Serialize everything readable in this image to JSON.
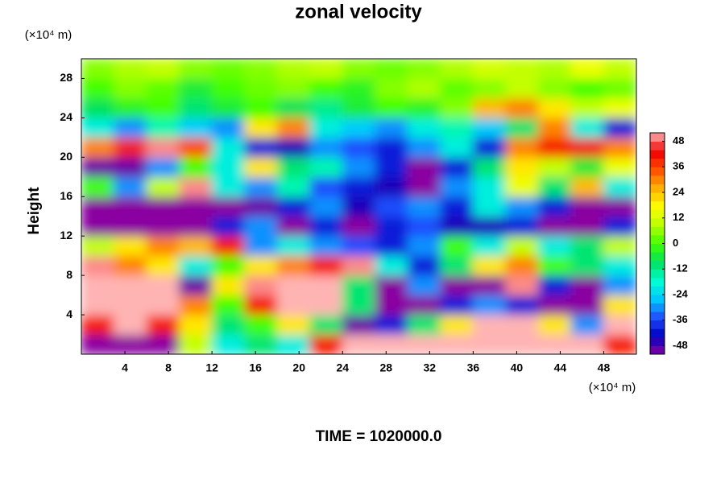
{
  "chart_data": {
    "type": "heatmap",
    "title": "zonal velocity",
    "xlabel": "(×10⁴ m)",
    "ylabel": "Height",
    "yunit": "(×10⁴ m)",
    "footer": "TIME = 1020000.0",
    "xlim": [
      0,
      51
    ],
    "ylim": [
      0,
      30
    ],
    "xticks": [
      4,
      8,
      12,
      16,
      20,
      24,
      28,
      32,
      36,
      40,
      44,
      48
    ],
    "yticks": [
      4,
      8,
      12,
      16,
      20,
      24,
      28
    ],
    "x": [
      1.5,
      4.5,
      7.5,
      10.5,
      13.5,
      16.5,
      19.5,
      22.5,
      25.5,
      28.5,
      31.5,
      34.5,
      37.5,
      40.5,
      43.5,
      46.5,
      49.5
    ],
    "y": [
      1,
      3,
      5,
      7,
      9,
      11,
      13,
      15,
      17,
      19,
      21,
      23,
      25,
      27,
      29
    ],
    "z": [
      [
        -52,
        -52,
        -52,
        10,
        -20,
        -10,
        -20,
        40,
        55,
        55,
        55,
        55,
        55,
        55,
        55,
        55,
        40
      ],
      [
        40,
        55,
        40,
        20,
        -10,
        0,
        20,
        -10,
        -50,
        -40,
        -10,
        20,
        55,
        55,
        20,
        -30,
        55
      ],
      [
        55,
        55,
        55,
        30,
        0,
        40,
        55,
        55,
        -10,
        -52,
        -52,
        -40,
        -30,
        -40,
        -52,
        -52,
        20
      ],
      [
        55,
        55,
        55,
        -50,
        20,
        50,
        55,
        55,
        -10,
        -52,
        -30,
        -52,
        -52,
        50,
        -40,
        -52,
        -30
      ],
      [
        50,
        30,
        20,
        -20,
        0,
        20,
        30,
        40,
        50,
        -20,
        -40,
        -10,
        20,
        30,
        0,
        -10,
        -20
      ],
      [
        10,
        20,
        30,
        25,
        40,
        -30,
        -20,
        -30,
        -35,
        -40,
        -30,
        0,
        -20,
        10,
        -20,
        -10,
        10
      ],
      [
        -52,
        -52,
        -52,
        -52,
        -40,
        -30,
        -52,
        -40,
        -52,
        -40,
        -35,
        -45,
        -45,
        -40,
        -52,
        -52,
        -40
      ],
      [
        -52,
        -52,
        -52,
        -52,
        -52,
        -50,
        -40,
        -30,
        -45,
        -35,
        -30,
        -40,
        -20,
        -30,
        -40,
        -52,
        -52
      ],
      [
        0,
        -30,
        10,
        50,
        -20,
        -30,
        -15,
        -35,
        -40,
        -45,
        -52,
        -30,
        -20,
        15,
        -10,
        25,
        -20
      ],
      [
        -50,
        -50,
        -30,
        0,
        -20,
        20,
        -10,
        -15,
        -30,
        -40,
        -52,
        -40,
        -10,
        20,
        10,
        -5,
        15
      ],
      [
        30,
        45,
        50,
        35,
        -20,
        -40,
        -45,
        -30,
        -35,
        -40,
        -30,
        -20,
        -40,
        30,
        40,
        45,
        30
      ],
      [
        -20,
        -30,
        -15,
        -25,
        -30,
        20,
        30,
        -20,
        -25,
        -30,
        -20,
        -15,
        -25,
        -10,
        30,
        -20,
        -40
      ],
      [
        -8,
        -3,
        0,
        -10,
        -5,
        0,
        -8,
        -12,
        -5,
        0,
        -3,
        5,
        25,
        30,
        20,
        10,
        15
      ],
      [
        0,
        5,
        2,
        -5,
        0,
        3,
        5,
        0,
        -3,
        5,
        8,
        2,
        5,
        10,
        5,
        0,
        3
      ],
      [
        5,
        8,
        10,
        5,
        3,
        5,
        8,
        10,
        5,
        3,
        5,
        8,
        12,
        10,
        8,
        15,
        10
      ]
    ],
    "colorbar": {
      "lim": [
        -52,
        52
      ],
      "ticks": [
        48,
        36,
        24,
        12,
        0,
        -12,
        -24,
        -36,
        -48
      ],
      "colors": [
        "#8a00a0",
        "#0000c0",
        "#2050ff",
        "#00c8ff",
        "#00ffd0",
        "#00e060",
        "#40ff00",
        "#b8ff00",
        "#ffff00",
        "#ffb000",
        "#ff5000",
        "#f00000",
        "#ffb4b4"
      ]
    }
  }
}
